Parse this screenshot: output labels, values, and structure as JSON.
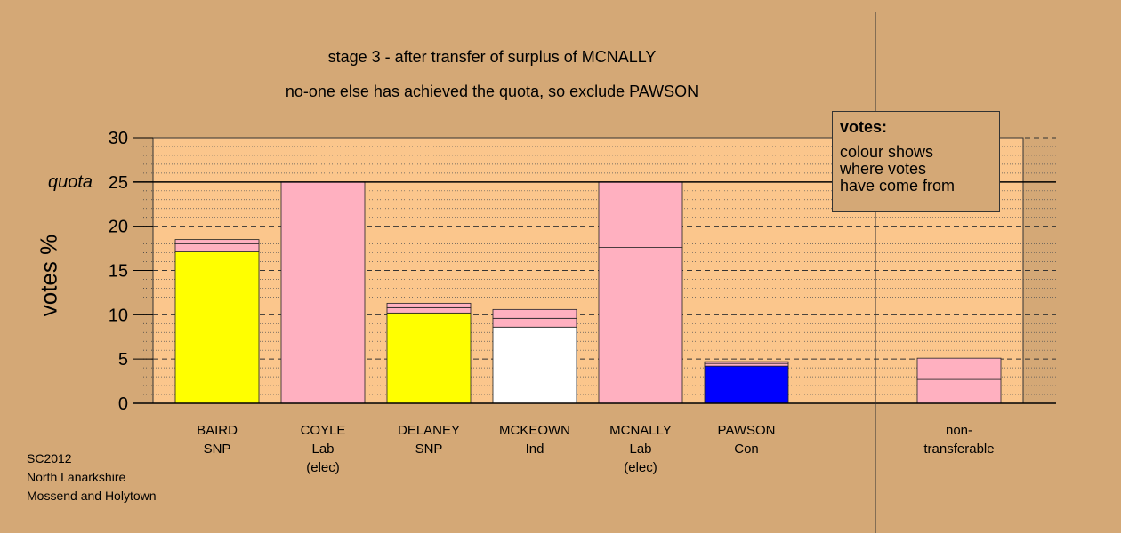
{
  "titles": {
    "line1": "stage 3 - after transfer of surplus of MCNALLY",
    "line2": "no-one else has achieved the quota, so exclude PAWSON"
  },
  "footer": [
    "SC2012",
    "North Lanarkshire",
    "Mossend and Holytown"
  ],
  "legend": {
    "title": "votes:",
    "body": [
      "colour shows",
      "where votes",
      "have come from"
    ]
  },
  "colors": {
    "background": "#d4a876",
    "plot": "#fbc68c",
    "SNP": "#ffff00",
    "Lab": "#ffb0c0",
    "Ind": "#ffffff",
    "Con": "#0000ff"
  },
  "chart_data": {
    "type": "bar",
    "stacked": true,
    "ylabel": "votes %",
    "ylim": [
      0,
      30
    ],
    "yticks": [
      0,
      5,
      10,
      15,
      20,
      25,
      30
    ],
    "quota_value": 25,
    "quota_label": "quota",
    "grid": true,
    "candidates": [
      {
        "name": "BAIRD",
        "party": "SNP",
        "note": "",
        "segments": [
          {
            "value": 17.1,
            "color": "#ffff00"
          },
          {
            "value": 0.9,
            "color": "#ffb0c0"
          },
          {
            "value": 0.5,
            "color": "#ffb0c0"
          }
        ]
      },
      {
        "name": "COYLE",
        "party": "Lab",
        "note": "(elec)",
        "segments": [
          {
            "value": 25.0,
            "color": "#ffb0c0"
          }
        ]
      },
      {
        "name": "DELANEY",
        "party": "SNP",
        "note": "",
        "segments": [
          {
            "value": 10.2,
            "color": "#ffff00"
          },
          {
            "value": 0.6,
            "color": "#ffb0c0"
          },
          {
            "value": 0.5,
            "color": "#ffb0c0"
          }
        ]
      },
      {
        "name": "MCKEOWN",
        "party": "Ind",
        "note": "",
        "segments": [
          {
            "value": 8.6,
            "color": "#ffffff"
          },
          {
            "value": 1.0,
            "color": "#ffb0c0"
          },
          {
            "value": 1.0,
            "color": "#ffb0c0"
          }
        ]
      },
      {
        "name": "MCNALLY",
        "party": "Lab",
        "note": "(elec)",
        "segments": [
          {
            "value": 17.6,
            "color": "#ffb0c0"
          },
          {
            "value": 7.4,
            "color": "#ffb0c0"
          }
        ]
      },
      {
        "name": "PAWSON",
        "party": "Con",
        "note": "",
        "segments": [
          {
            "value": 4.2,
            "color": "#0000ff"
          },
          {
            "value": 0.3,
            "color": "#ffb0c0"
          },
          {
            "value": 0.2,
            "color": "#ffb0c0"
          }
        ]
      }
    ],
    "nontransferable": {
      "name": "non-",
      "party": "transferable",
      "note": "",
      "segments": [
        {
          "value": 2.7,
          "color": "#ffb0c0"
        },
        {
          "value": 2.4,
          "color": "#ffb0c0"
        }
      ]
    }
  }
}
